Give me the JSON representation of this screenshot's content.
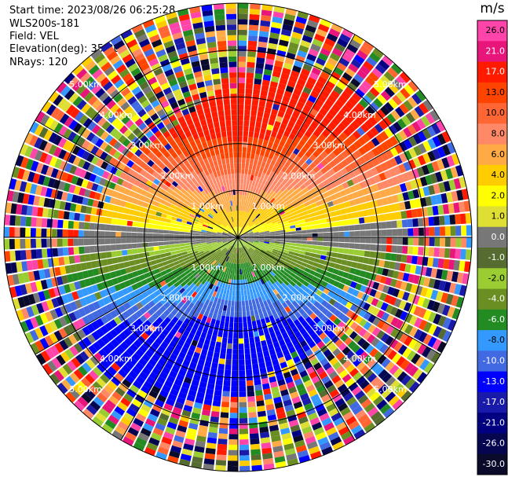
{
  "header": {
    "start_time": "Start time: 2023/08/26 06:25:28",
    "instrument": "WLS200s-181",
    "field": "Field: VEL",
    "elevation": "Elevation(deg): 35.30",
    "nrays": "NRays: 120"
  },
  "chart_data": {
    "type": "ppi",
    "field": "VEL",
    "units": "m/s",
    "n_rays": 120,
    "range_max_km": 5.0,
    "range_rings_km": [
      1.0,
      2.0,
      3.0
    ],
    "range_labels": [
      "1.00km",
      "2.00km",
      "3.00km",
      "4.00km",
      "5.00km"
    ],
    "radial_spokes_deg": [
      0,
      30,
      60,
      90,
      120,
      150,
      180,
      210,
      240,
      270,
      300,
      330
    ],
    "colorbar": {
      "ticks": [
        "26.0",
        "21.0",
        "17.0",
        "13.0",
        "10.0",
        "8.0",
        "6.0",
        "4.0",
        "2.0",
        "1.0",
        "0.0",
        "-1.0",
        "-2.0",
        "-4.0",
        "-6.0",
        "-8.0",
        "-10.0",
        "-13.0",
        "-17.0",
        "-21.0",
        "-26.0",
        "-30.0"
      ],
      "colors": [
        "#ff44aa",
        "#e8157a",
        "#ff1a00",
        "#ff4400",
        "#ff6633",
        "#ff8866",
        "#ffaa44",
        "#ffcc00",
        "#ffff00",
        "#dede33",
        "#777777",
        "#556b2f",
        "#9acd32",
        "#6b8e23",
        "#228b22",
        "#3399ff",
        "#4169e1",
        "#0000ff",
        "#1a1aaa",
        "#000080",
        "#050550",
        "#0a0a2a"
      ]
    },
    "approach_velocity_mps": {
      "upper_half": "positive (2 to 13)",
      "lower_half": "negative (-2 to -13)"
    }
  }
}
